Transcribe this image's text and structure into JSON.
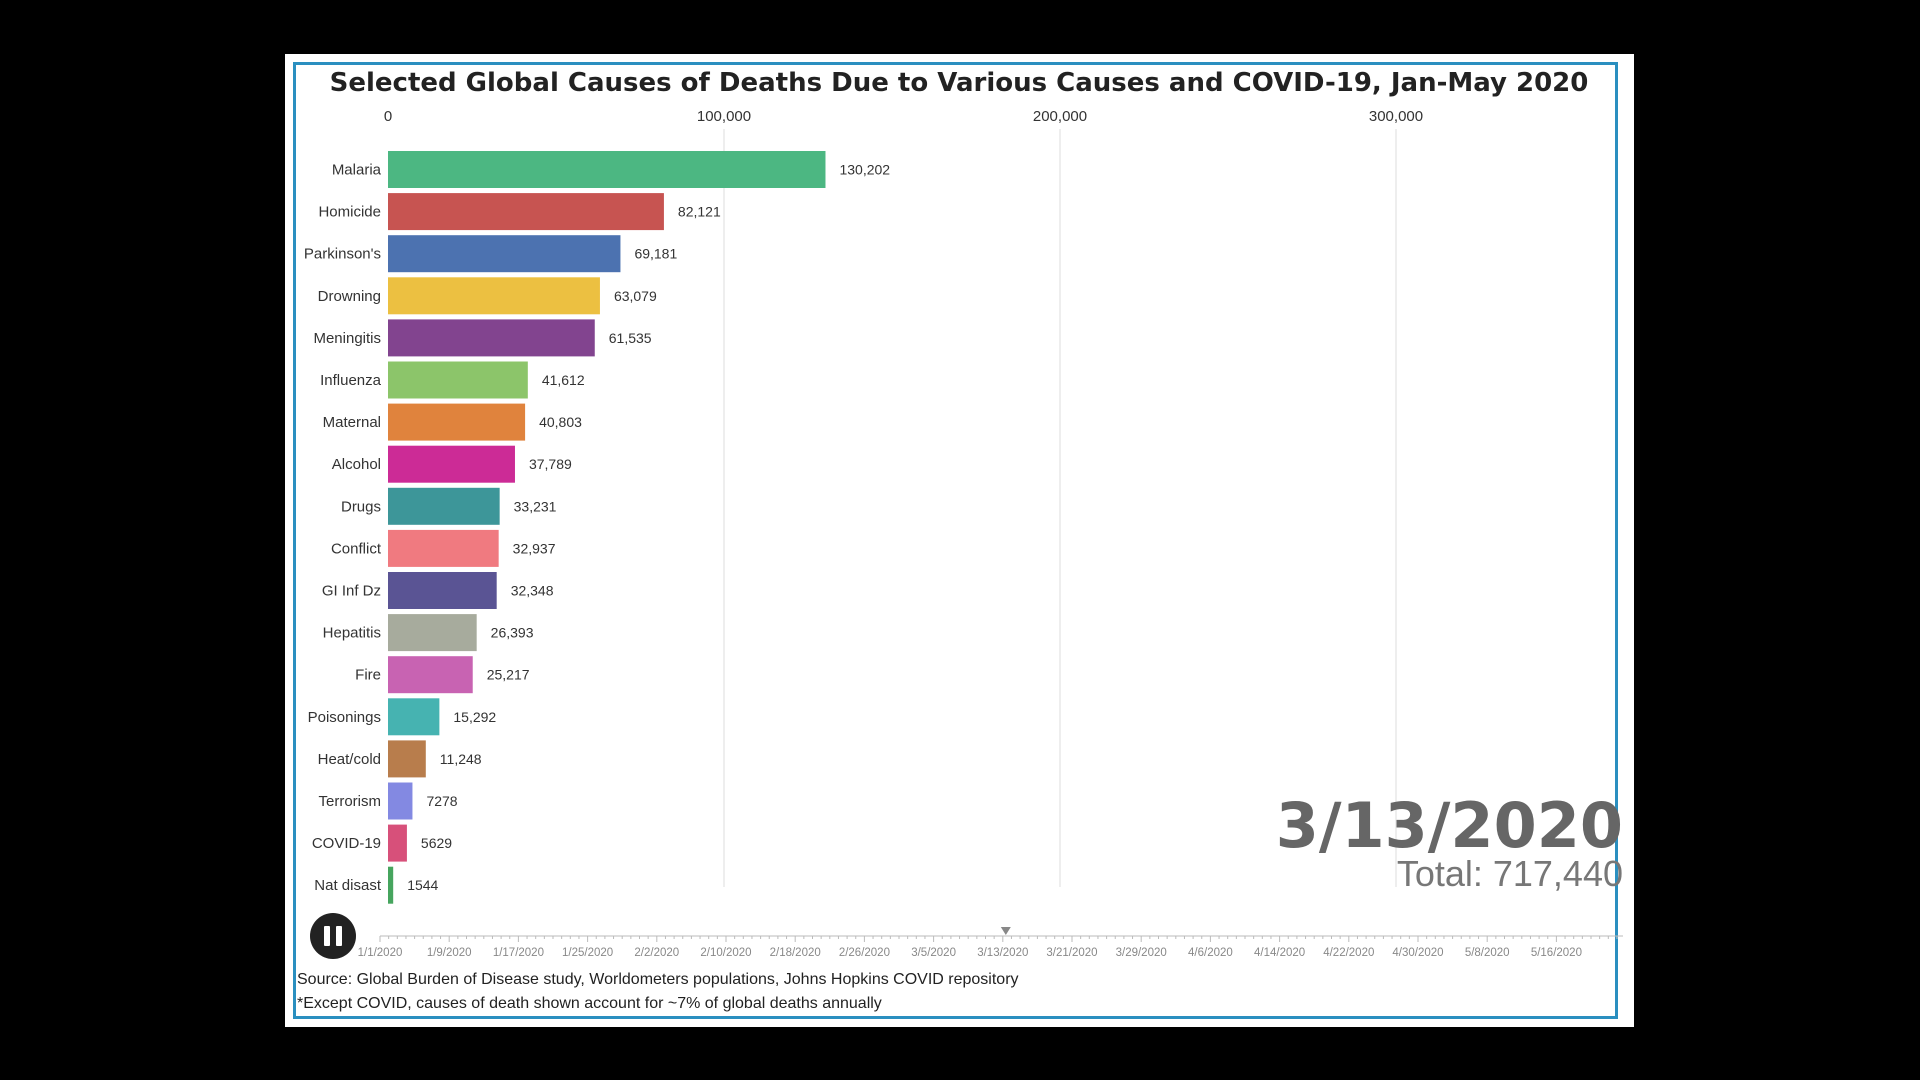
{
  "chart_data": {
    "type": "bar",
    "orientation": "horizontal",
    "title": "Selected Global Causes of Deaths Due to Various Causes and COVID-19, Jan-May 2020",
    "x_ticks": [
      "0",
      "100,000",
      "200,000",
      "300,000"
    ],
    "x_tick_values": [
      0,
      100000,
      200000,
      300000
    ],
    "xlim": [
      0,
      390000
    ],
    "grid": true,
    "categories": [
      "Malaria",
      "Homicide",
      "Parkinson's",
      "Drowning",
      "Meningitis",
      "Influenza",
      "Maternal",
      "Alcohol",
      "Drugs",
      "Conflict",
      "GI Inf Dz",
      "Hepatitis",
      "Fire",
      "Poisonings",
      "Heat/cold",
      "Terrorism",
      "COVID-19",
      "Nat disast"
    ],
    "values": [
      130202,
      82121,
      69181,
      63079,
      61535,
      41612,
      40803,
      37789,
      33231,
      32937,
      32348,
      26393,
      25217,
      15292,
      11248,
      7278,
      5629,
      1544
    ],
    "value_labels": [
      "130,202",
      "82,121",
      "69,181",
      "63,079",
      "61,535",
      "41,612",
      "40,803",
      "37,789",
      "33,231",
      "32,937",
      "32,348",
      "26,393",
      "25,217",
      "15,292",
      "11,248",
      "7278",
      "5629",
      "1544"
    ],
    "colors": [
      "#4cb782",
      "#c75451",
      "#4c72b0",
      "#ecc041",
      "#82448f",
      "#8cc56a",
      "#e0833d",
      "#cc2b96",
      "#3d9699",
      "#f07a80",
      "#5a5494",
      "#a7ab9d",
      "#c863b2",
      "#46b3b1",
      "#b87d4c",
      "#8389e2",
      "#d7507a",
      "#46a55e"
    ]
  },
  "current_date": "3/13/2020",
  "total_text": "Total: 717,440",
  "timeline": {
    "labels": [
      "1/1/2020",
      "1/9/2020",
      "1/17/2020",
      "1/25/2020",
      "2/2/2020",
      "2/10/2020",
      "2/18/2020",
      "2/26/2020",
      "3/5/2020",
      "3/13/2020",
      "3/21/2020",
      "3/29/2020",
      "4/6/2020",
      "4/14/2020",
      "4/22/2020",
      "4/30/2020",
      "5/8/2020",
      "5/16/2020"
    ],
    "current_label": "3/13/2020"
  },
  "source_line": "Source: Global Burden of Disease study, Worldometers populations, Johns Hopkins COVID repository",
  "footnote_line": "*Except COVID, causes of death shown account for ~7% of global deaths annually",
  "play_button": {
    "state": "pause-icon"
  },
  "colors": {
    "frame_border": "#2a8fc0",
    "background": "#000000"
  }
}
